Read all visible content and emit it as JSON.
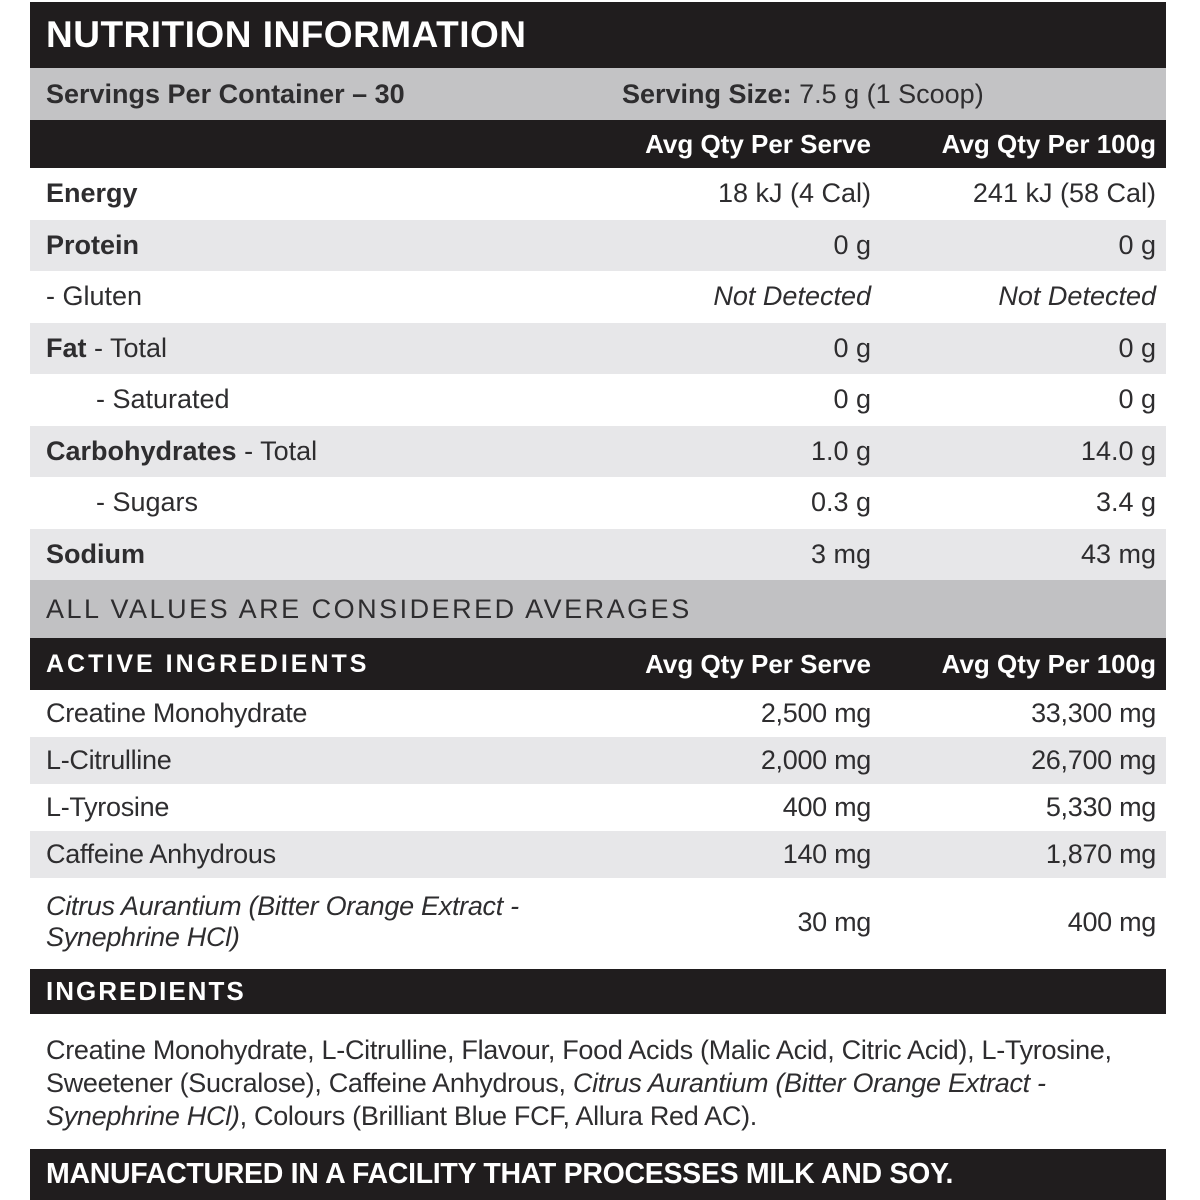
{
  "title": "NUTRITION INFORMATION",
  "servings_bar": {
    "per_container": "Servings Per Container – 30",
    "serving_size_label": "Serving Size:",
    "serving_size_value": "7.5 g (1 Scoop)"
  },
  "columns": {
    "per_serve": "Avg Qty Per Serve",
    "per_100g": "Avg Qty Per 100g"
  },
  "nutrition_rows": [
    {
      "bold": "Energy",
      "rest": "",
      "serve": "18 kJ (4 Cal)",
      "per100": "241 kJ (58 Cal)"
    },
    {
      "bold": "Protein",
      "rest": "",
      "serve": "0 g",
      "per100": "0 g"
    },
    {
      "bold": "",
      "rest": "- Gluten",
      "serve": "Not Detected",
      "per100": "Not Detected"
    },
    {
      "bold": "Fat",
      "rest": " - Total",
      "serve": "0 g",
      "per100": "0 g"
    },
    {
      "bold": "",
      "rest": "- Saturated",
      "serve": "0 g",
      "per100": "0 g"
    },
    {
      "bold": "Carbohydrates",
      "rest": " - Total",
      "serve": "1.0 g",
      "per100": "14.0 g"
    },
    {
      "bold": "",
      "rest": "- Sugars",
      "serve": "0.3 g",
      "per100": "3.4 g"
    },
    {
      "bold": "Sodium",
      "rest": "",
      "serve": "3 mg",
      "per100": "43 mg"
    }
  ],
  "note": "ALL VALUES ARE CONSIDERED AVERAGES",
  "active_ingredients": {
    "header": "ACTIVE INGREDIENTS",
    "rows": [
      {
        "label": "Creatine Monohydrate",
        "serve": "2,500 mg",
        "per100": "33,300 mg"
      },
      {
        "label": "L-Citrulline",
        "serve": "2,000 mg",
        "per100": "26,700 mg"
      },
      {
        "label": "L-Tyrosine",
        "serve": "400 mg",
        "per100": "5,330 mg"
      },
      {
        "label": "Caffeine Anhydrous",
        "serve": "140 mg",
        "per100": "1,870 mg"
      },
      {
        "label": "Citrus Aurantium (Bitter Orange Extract - Synephrine HCl)",
        "serve": "30 mg",
        "per100": "400 mg"
      }
    ]
  },
  "ingredients": {
    "header": "INGREDIENTS",
    "part1": "Creatine Monohydrate, L-Citrulline, Flavour, Food Acids (Malic Acid, Citric Acid), L-Tyrosine, Sweetener (Sucralose), Caffeine Anhydrous,",
    "part2_italic": "Citrus Aurantium (Bitter Orange Extract - Synephrine HCl)",
    "part3": ", Colours (Brilliant Blue FCF, Allura Red AC)."
  },
  "footer": "MANUFACTURED IN A FACILITY THAT PROCESSES MILK AND SOY.",
  "colors": {
    "black": "#201d1e",
    "silver": "#c3c3c5",
    "row_alt": "#e7e7e9",
    "note_gray": "#c1c1c3",
    "ink": "#2e2d2f"
  }
}
